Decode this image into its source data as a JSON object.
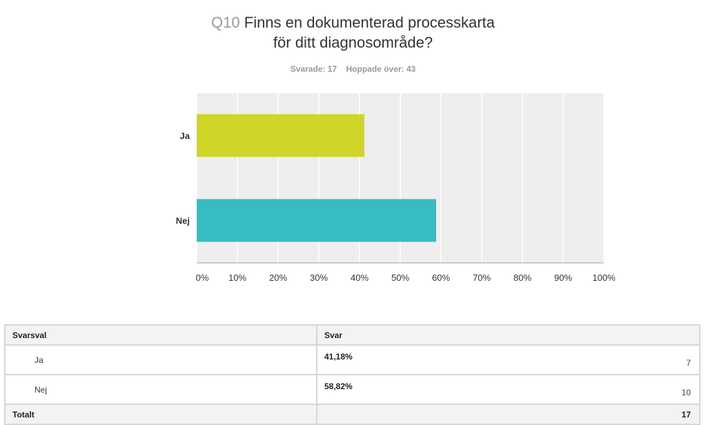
{
  "header": {
    "question_number": "Q10",
    "title_line1": "Finns en dokumenterad processkarta",
    "title_line2": "för ditt diagnosområde?",
    "answered": "Svarade: 17",
    "skipped": "Hoppade över: 43"
  },
  "chart_data": {
    "type": "bar",
    "orientation": "horizontal",
    "categories": [
      "Ja",
      "Nej"
    ],
    "values": [
      41.18,
      58.82
    ],
    "colors": [
      "#d0d628",
      "#37bcc1"
    ],
    "xlim": [
      0,
      100
    ],
    "xticks": [
      "0%",
      "10%",
      "20%",
      "30%",
      "40%",
      "50%",
      "60%",
      "70%",
      "80%",
      "90%",
      "100%"
    ],
    "grid": true
  },
  "table": {
    "headers": [
      "Svarsval",
      "Svar"
    ],
    "rows": [
      {
        "label": "Ja",
        "percent": "41,18%",
        "count": "7"
      },
      {
        "label": "Nej",
        "percent": "58,82%",
        "count": "10"
      }
    ],
    "total_label": "Totalt",
    "total_count": "17"
  }
}
